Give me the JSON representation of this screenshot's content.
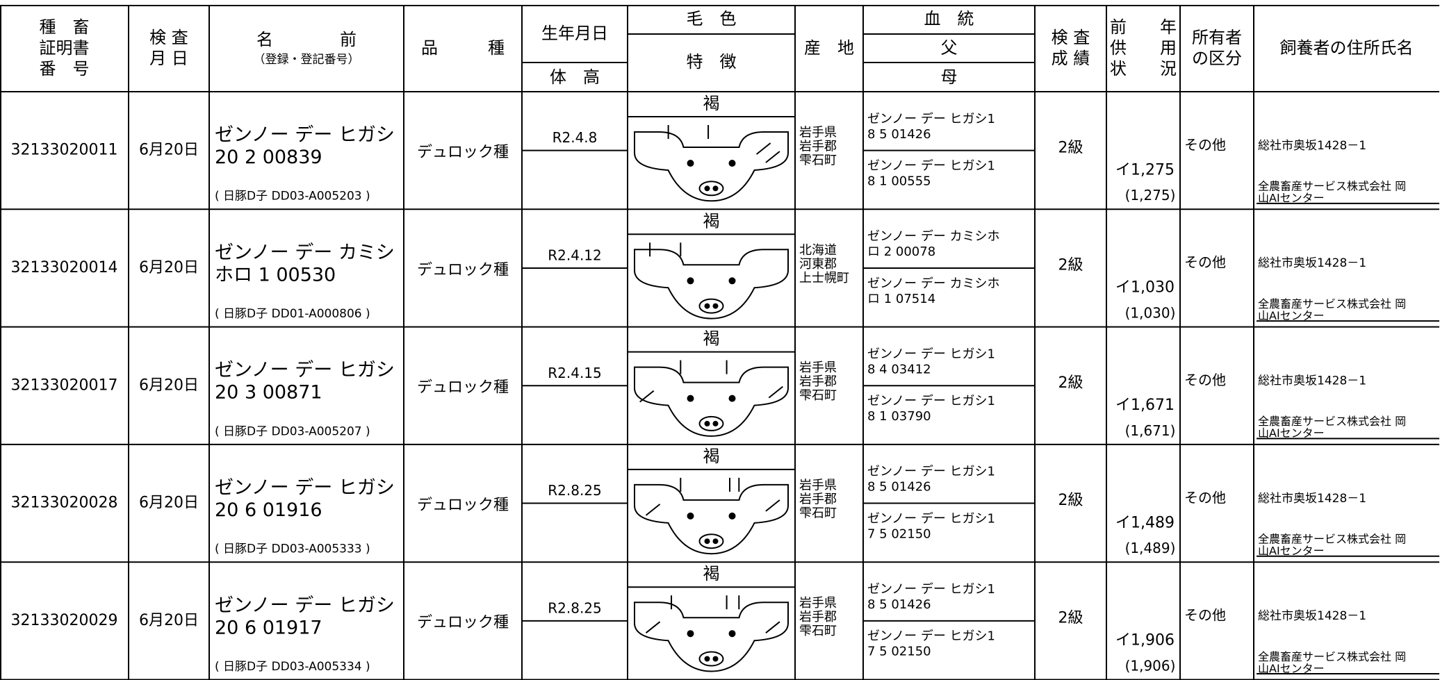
{
  "header": {
    "cert": [
      "種　畜",
      "証明書",
      "番　号"
    ],
    "date": [
      "検 査",
      "月 日"
    ],
    "name": [
      "名　　　　前",
      "（登録・登記番号）"
    ],
    "breed": "品　　　種",
    "birth": "生年月日",
    "height": "体　高",
    "color": "毛　色",
    "feature": "特　徴",
    "origin": "産　地",
    "pedigree": "血　統",
    "sire": "父",
    "dam": "母",
    "grade": [
      "検 査",
      "成 績"
    ],
    "usage": [
      "前　　年",
      "供　　用",
      "状　　況"
    ],
    "owner": [
      "所有者",
      "の区分"
    ],
    "keeper": "飼養者の住所氏名"
  },
  "rows": [
    {
      "cert": "32133020011",
      "date": "6月20日",
      "name": [
        "ゼンノー デー ヒガシ",
        "20 2 00839"
      ],
      "reg": "( 日豚D子 DD03-A005203 )",
      "breed": "デュロック種",
      "birth": "R2.4.8",
      "color": "褐",
      "origin": [
        "岩手県",
        "岩手郡",
        "雫石町"
      ],
      "sire": [
        "ゼンノー デー ヒガシ1",
        "8 5 01426"
      ],
      "dam": [
        "ゼンノー デー ヒガシ1",
        "8 1 00555"
      ],
      "grade": "2級",
      "usage": "イ1,275",
      "usage_paren": "(1,275)",
      "owner": "その他",
      "address": "総社市奥坂1428－1",
      "keeper": [
        "全農畜産サービス株式会社 岡",
        "山AIセンター"
      ]
    },
    {
      "cert": "32133020014",
      "date": "6月20日",
      "name": [
        "ゼンノー デー カミシ",
        "ホロ 1 00530"
      ],
      "reg": "( 日豚D子 DD01-A000806 )",
      "breed": "デュロック種",
      "birth": "R2.4.12",
      "color": "褐",
      "origin": [
        "北海道",
        "河東郡",
        "上士幌町"
      ],
      "sire": [
        "ゼンノー デー カミシホ",
        "ロ 2 00078"
      ],
      "dam": [
        "ゼンノー デー カミシホ",
        "ロ 1 07514"
      ],
      "grade": "2級",
      "usage": "イ1,030",
      "usage_paren": "(1,030)",
      "owner": "その他",
      "address": "総社市奥坂1428－1",
      "keeper": [
        "全農畜産サービス株式会社 岡",
        "山AIセンター"
      ]
    },
    {
      "cert": "32133020017",
      "date": "6月20日",
      "name": [
        "ゼンノー デー ヒガシ",
        "20 3 00871"
      ],
      "reg": "( 日豚D子 DD03-A005207 )",
      "breed": "デュロック種",
      "birth": "R2.4.15",
      "color": "褐",
      "origin": [
        "岩手県",
        "岩手郡",
        "雫石町"
      ],
      "sire": [
        "ゼンノー デー ヒガシ1",
        "8 4 03412"
      ],
      "dam": [
        "ゼンノー デー ヒガシ1",
        "8 1 03790"
      ],
      "grade": "2級",
      "usage": "イ1,671",
      "usage_paren": "(1,671)",
      "owner": "その他",
      "address": "総社市奥坂1428－1",
      "keeper": [
        "全農畜産サービス株式会社 岡",
        "山AIセンター"
      ]
    },
    {
      "cert": "32133020028",
      "date": "6月20日",
      "name": [
        "ゼンノー デー ヒガシ",
        "20 6 01916"
      ],
      "reg": "( 日豚D子 DD03-A005333 )",
      "breed": "デュロック種",
      "birth": "R2.8.25",
      "color": "褐",
      "origin": [
        "岩手県",
        "岩手郡",
        "雫石町"
      ],
      "sire": [
        "ゼンノー デー ヒガシ1",
        "8 5 01426"
      ],
      "dam": [
        "ゼンノー デー ヒガシ1",
        "7 5 02150"
      ],
      "grade": "2級",
      "usage": "イ1,489",
      "usage_paren": "(1,489)",
      "owner": "その他",
      "address": "総社市奥坂1428－1",
      "keeper": [
        "全農畜産サービス株式会社 岡",
        "山AIセンター"
      ]
    },
    {
      "cert": "32133020029",
      "date": "6月20日",
      "name": [
        "ゼンノー デー ヒガシ",
        "20 6 01917"
      ],
      "reg": "( 日豚D子 DD03-A005334 )",
      "breed": "デュロック種",
      "birth": "R2.8.25",
      "color": "褐",
      "origin": [
        "岩手県",
        "岩手郡",
        "雫石町"
      ],
      "sire": [
        "ゼンノー デー ヒガシ1",
        "8 5 01426"
      ],
      "dam": [
        "ゼンノー デー ヒガシ1",
        "7 5 02150"
      ],
      "grade": "2級",
      "usage": "イ1,906",
      "usage_paren": "(1,906)",
      "owner": "その他",
      "address": "総社市奥坂1428－1",
      "keeper": [
        "全農畜産サービス株式会社 岡",
        "山AIセンター"
      ]
    }
  ]
}
